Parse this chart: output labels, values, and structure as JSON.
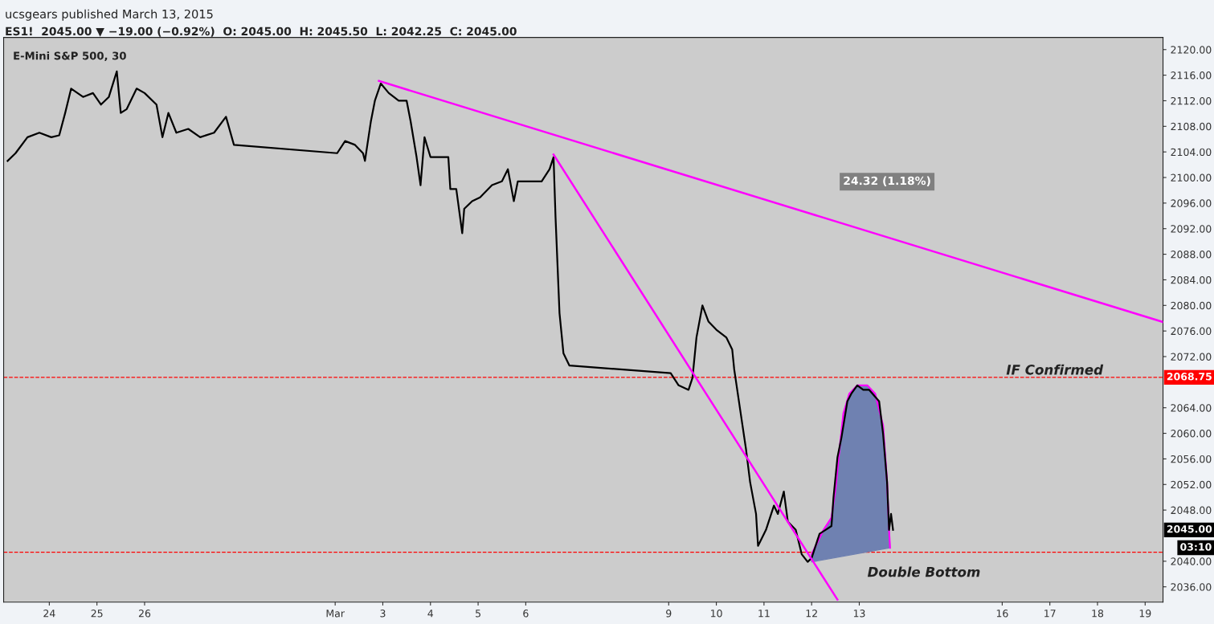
{
  "chart_data": {
    "type": "line",
    "title": "E-Mini S&P 500, 30",
    "xlim": [
      "2015-02-23T01:00",
      "2015-03-19T09:00"
    ],
    "ylim": [
      2033.6,
      2121.9
    ],
    "xticks": [
      {
        "value": "2015-02-24",
        "label": "24"
      },
      {
        "value": "2015-02-25",
        "label": "25"
      },
      {
        "value": "2015-02-26",
        "label": "26"
      },
      {
        "value": "2015-03-02",
        "label": "Mar"
      },
      {
        "value": "2015-03-03",
        "label": "3"
      },
      {
        "value": "2015-03-04",
        "label": "4"
      },
      {
        "value": "2015-03-05",
        "label": "5"
      },
      {
        "value": "2015-03-06",
        "label": "6"
      },
      {
        "value": "2015-03-09",
        "label": "9"
      },
      {
        "value": "2015-03-10",
        "label": "10"
      },
      {
        "value": "2015-03-11",
        "label": "11"
      },
      {
        "value": "2015-03-12",
        "label": "12"
      },
      {
        "value": "2015-03-13",
        "label": "13"
      },
      {
        "value": "2015-03-16",
        "label": "16"
      },
      {
        "value": "2015-03-17",
        "label": "17"
      },
      {
        "value": "2015-03-18",
        "label": "18"
      },
      {
        "value": "2015-03-19",
        "label": "19"
      }
    ],
    "yticks": [
      {
        "value": 2036,
        "label": "2036.00"
      },
      {
        "value": 2040,
        "label": "2040.00"
      },
      {
        "value": 2048,
        "label": "2048.00"
      },
      {
        "value": 2052,
        "label": "2052.00"
      },
      {
        "value": 2056,
        "label": "2056.00"
      },
      {
        "value": 2060,
        "label": "2060.00"
      },
      {
        "value": 2064,
        "label": "2064.00"
      },
      {
        "value": 2072,
        "label": "2072.00"
      },
      {
        "value": 2076,
        "label": "2076.00"
      },
      {
        "value": 2080,
        "label": "2080.00"
      },
      {
        "value": 2084,
        "label": "2084.00"
      },
      {
        "value": 2088,
        "label": "2088.00"
      },
      {
        "value": 2092,
        "label": "2092.00"
      },
      {
        "value": 2096,
        "label": "2096.00"
      },
      {
        "value": 2100,
        "label": "2100.00"
      },
      {
        "value": 2104,
        "label": "2104.00"
      },
      {
        "value": 2108,
        "label": "2108.00"
      },
      {
        "value": 2112,
        "label": "2112.00"
      },
      {
        "value": 2116,
        "label": "2116.00"
      },
      {
        "value": 2120,
        "label": "2120.00"
      }
    ],
    "grid": false,
    "legend": false,
    "series": [
      {
        "type": "area",
        "color": "#6f81b1",
        "x": [
          "2015-03-12T00:00",
          "2015-03-12T06:00",
          "2015-03-12T10:00",
          "2015-03-12T12:00",
          "2015-03-12T14:00",
          "2015-03-12T16:00",
          "2015-03-12T19:00",
          "2015-03-12T23:00",
          "2015-03-13T04:00",
          "2015-03-13T08:00",
          "2015-03-13T12:00",
          "2015-03-13T14:00",
          "2015-03-13T15:00",
          "2015-03-13T15:30",
          "2015-03-12T00:00"
        ],
        "values": [
          2041.1,
          2044.9,
          2046.8,
          2051.2,
          2057.4,
          2063.1,
          2066.2,
          2067.5,
          2067.5,
          2066.2,
          2061.2,
          2052.4,
          2044.9,
          2042.1,
          2039.9
        ]
      },
      {
        "type": "line",
        "color": "#ff00ff",
        "x": [
          "2015-03-12T00:00",
          "2015-03-12T06:00",
          "2015-03-12T10:00",
          "2015-03-12T12:00",
          "2015-03-12T14:00",
          "2015-03-12T16:00",
          "2015-03-12T19:00",
          "2015-03-12T23:00",
          "2015-03-13T04:00",
          "2015-03-13T08:00",
          "2015-03-13T12:00",
          "2015-03-13T14:00",
          "2015-03-13T15:00",
          "2015-03-13T15:30"
        ],
        "values": [
          2041.1,
          2044.9,
          2046.8,
          2051.2,
          2057.4,
          2063.1,
          2066.2,
          2067.5,
          2067.5,
          2066.2,
          2061.2,
          2052.4,
          2044.9,
          2042.1
        ]
      },
      {
        "color": "#000000",
        "x": [
          "2015-02-23T03:00",
          "2015-02-23T07:00",
          "2015-02-23T13:00",
          "2015-02-23T19:00",
          "2015-02-24T01:00",
          "2015-02-24T05:00",
          "2015-02-24T08:00",
          "2015-02-24T11:00",
          "2015-02-24T17:00",
          "2015-02-24T22:00",
          "2015-02-25T02:00",
          "2015-02-25T06:00",
          "2015-02-25T10:00",
          "2015-02-25T12:00",
          "2015-02-25T15:00",
          "2015-02-25T20:00",
          "2015-02-26T00:00",
          "2015-02-26T06:00",
          "2015-02-26T09:00",
          "2015-02-26T12:00",
          "2015-02-26T16:00",
          "2015-02-26T22:00",
          "2015-02-27T04:00",
          "2015-02-27T11:00",
          "2015-02-27T17:00",
          "2015-02-27T21:00",
          "2015-03-02T01:00",
          "2015-03-02T05:00",
          "2015-03-02T10:00",
          "2015-03-02T14:00",
          "2015-03-02T15:00",
          "2015-03-02T18:00",
          "2015-03-02T20:00",
          "2015-03-02T23:00",
          "2015-03-03T03:00",
          "2015-03-03T08:00",
          "2015-03-03T12:00",
          "2015-03-03T14:00",
          "2015-03-03T17:00",
          "2015-03-03T19:00",
          "2015-03-03T21:00",
          "2015-03-04T00:00",
          "2015-03-04T05:00",
          "2015-03-04T09:00",
          "2015-03-04T10:00",
          "2015-03-04T13:00",
          "2015-03-04T16:00",
          "2015-03-04T17:00",
          "2015-03-04T21:00",
          "2015-03-05T01:00",
          "2015-03-05T07:00",
          "2015-03-05T12:00",
          "2015-03-05T15:00",
          "2015-03-05T18:00",
          "2015-03-05T20:00",
          "2015-03-06T01:00",
          "2015-03-06T08:00",
          "2015-03-06T12:00",
          "2015-03-06T14:00",
          "2015-03-06T15:00",
          "2015-03-06T16:00",
          "2015-03-06T17:00",
          "2015-03-06T19:00",
          "2015-03-06T22:00",
          "2015-03-09T01:00",
          "2015-03-09T05:00",
          "2015-03-09T10:00",
          "2015-03-09T12:00",
          "2015-03-09T14:00",
          "2015-03-09T17:00",
          "2015-03-09T20:00",
          "2015-03-10T00:00",
          "2015-03-10T05:00",
          "2015-03-10T08:00",
          "2015-03-10T09:00",
          "2015-03-10T12:00",
          "2015-03-10T15:00",
          "2015-03-10T17:00",
          "2015-03-10T20:00",
          "2015-03-10T21:00",
          "2015-03-11T01:00",
          "2015-03-11T05:00",
          "2015-03-11T07:00",
          "2015-03-11T10:00",
          "2015-03-11T12:00",
          "2015-03-11T16:00",
          "2015-03-11T19:00",
          "2015-03-11T22:00",
          "2015-03-12T00:00",
          "2015-03-12T04:00",
          "2015-03-12T07:00",
          "2015-03-12T10:00",
          "2015-03-12T11:00",
          "2015-03-12T13:00",
          "2015-03-12T15:00",
          "2015-03-12T18:00",
          "2015-03-12T20:00",
          "2015-03-12T23:00",
          "2015-03-13T02:00",
          "2015-03-13T05:00",
          "2015-03-13T10:00",
          "2015-03-13T12:00",
          "2015-03-13T14:00",
          "2015-03-13T15:00",
          "2015-03-13T16:00",
          "2015-03-13T17:00"
        ],
        "values": [
          2102.6,
          2103.8,
          2106.3,
          2107.0,
          2106.3,
          2106.6,
          2110.1,
          2113.9,
          2112.6,
          2113.2,
          2111.4,
          2112.6,
          2116.6,
          2110.1,
          2110.7,
          2113.9,
          2113.2,
          2111.4,
          2106.3,
          2110.1,
          2107.0,
          2107.6,
          2106.3,
          2107.0,
          2109.5,
          2105.1,
          2103.8,
          2105.7,
          2105.1,
          2103.8,
          2102.6,
          2108.8,
          2112.0,
          2114.7,
          2113.2,
          2112.0,
          2112.0,
          2108.8,
          2103.2,
          2098.8,
          2106.3,
          2103.2,
          2103.2,
          2103.2,
          2098.2,
          2098.2,
          2091.3,
          2095.1,
          2096.3,
          2096.9,
          2098.8,
          2099.4,
          2101.3,
          2096.3,
          2099.4,
          2099.4,
          2099.4,
          2101.3,
          2103.2,
          2093.8,
          2086.3,
          2078.8,
          2072.5,
          2070.6,
          2069.4,
          2067.5,
          2066.8,
          2068.7,
          2075.0,
          2080.0,
          2077.5,
          2076.2,
          2075.0,
          2073.1,
          2070.0,
          2063.7,
          2057.4,
          2052.4,
          2047.4,
          2042.4,
          2044.9,
          2048.7,
          2047.4,
          2050.9,
          2046.2,
          2044.9,
          2041.1,
          2039.9,
          2040.5,
          2044.3,
          2044.9,
          2045.5,
          2049.9,
          2056.2,
          2059.3,
          2065.0,
          2066.2,
          2067.5,
          2066.8,
          2066.8,
          2065.0,
          2059.9,
          2052.4,
          2044.9,
          2047.4,
          2044.9
        ]
      },
      {
        "type": "line",
        "color": "#ff00ff",
        "x": [
          "2015-03-02T22:00",
          "2015-03-19T09:00"
        ],
        "values": [
          2115.1,
          2077.4
        ]
      },
      {
        "type": "line",
        "color": "#ff00ff",
        "x": [
          "2015-03-06T14:00",
          "2015-03-12T13:00"
        ],
        "values": [
          2103.6,
          2034.0
        ]
      }
    ],
    "ref_lines": [
      {
        "axis": "y",
        "value": 2068.75,
        "label": "2068.75",
        "color": "#ff0000",
        "line_style": "dashed"
      },
      {
        "axis": "y",
        "value": 2041.4,
        "color": "#ff0000",
        "line_style": "dashed"
      }
    ],
    "annotations": [
      "ucsgears published March 13, 2015",
      "ES1!  2045.00 ▼ −19.00 (−0.92%)  O: 2045.00  H: 2045.50  L: 2042.25  C: 2045.00",
      "24.32 (1.18%)",
      "Double Bottom",
      "2045.00",
      "03:10",
      {
        "text": "IF Confirmed",
        "x": "2015-03-16T02:00",
        "y": 2068.75
      }
    ]
  }
}
